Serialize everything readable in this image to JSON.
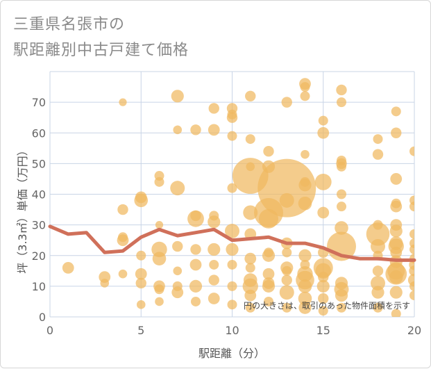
{
  "chart_data": {
    "type": "scatter",
    "title_line1": "三重県名張市の",
    "title_line2": "駅距離別中古戸建て価格",
    "xlabel": "駅距離（分）",
    "ylabel": "坪（3.3㎡）単価（万円）",
    "note": "円の大きさは、取引のあった物件面積を示す",
    "xlim": [
      0,
      20
    ],
    "ylim": [
      0,
      80
    ],
    "xticks": [
      0,
      5,
      10,
      15,
      20
    ],
    "yticks": [
      0,
      10,
      20,
      30,
      40,
      50,
      60,
      70
    ],
    "grid": true,
    "colors": {
      "bubble": "#f0b860",
      "line": "#d0705a",
      "grid": "#c8d4e6",
      "plot_bg": "#ffffff"
    },
    "trend_line": {
      "x": [
        0,
        1,
        2,
        3,
        4,
        5,
        6,
        7,
        8,
        9,
        10,
        11,
        12,
        13,
        14,
        15,
        16,
        17,
        18,
        19,
        20
      ],
      "y": [
        29.5,
        27,
        27.5,
        21,
        21.5,
        26,
        28.5,
        26.5,
        27.5,
        28.5,
        25,
        25.5,
        26,
        24,
        24,
        22.5,
        20,
        19,
        19,
        18.5,
        18.5
      ]
    },
    "points": [
      {
        "x": 1,
        "y": 16,
        "s": 1.2
      },
      {
        "x": 3,
        "y": 11,
        "s": 0.9
      },
      {
        "x": 3,
        "y": 13,
        "s": 1.2
      },
      {
        "x": 4,
        "y": 70,
        "s": 0.8
      },
      {
        "x": 4,
        "y": 35,
        "s": 1.1
      },
      {
        "x": 4,
        "y": 26,
        "s": 1.0
      },
      {
        "x": 4,
        "y": 25,
        "s": 1.2
      },
      {
        "x": 4,
        "y": 14,
        "s": 0.9
      },
      {
        "x": 5,
        "y": 39,
        "s": 1.2
      },
      {
        "x": 5,
        "y": 38,
        "s": 1.4
      },
      {
        "x": 5,
        "y": 20,
        "s": 1.0
      },
      {
        "x": 5,
        "y": 14,
        "s": 1.2
      },
      {
        "x": 5,
        "y": 11,
        "s": 1.1
      },
      {
        "x": 5,
        "y": 4,
        "s": 0.9
      },
      {
        "x": 6,
        "y": 46,
        "s": 1.0
      },
      {
        "x": 6,
        "y": 44,
        "s": 1.0
      },
      {
        "x": 6,
        "y": 30,
        "s": 0.8
      },
      {
        "x": 6,
        "y": 22,
        "s": 1.6
      },
      {
        "x": 6,
        "y": 19,
        "s": 1.4
      },
      {
        "x": 6,
        "y": 10,
        "s": 1.2
      },
      {
        "x": 6,
        "y": 9,
        "s": 1.0
      },
      {
        "x": 6,
        "y": 5,
        "s": 0.9
      },
      {
        "x": 7,
        "y": 72,
        "s": 1.3
      },
      {
        "x": 7,
        "y": 61,
        "s": 0.9
      },
      {
        "x": 7,
        "y": 42,
        "s": 1.5
      },
      {
        "x": 7,
        "y": 23,
        "s": 1.1
      },
      {
        "x": 7,
        "y": 15,
        "s": 0.9
      },
      {
        "x": 7,
        "y": 10,
        "s": 1.0
      },
      {
        "x": 7,
        "y": 8,
        "s": 1.2
      },
      {
        "x": 8,
        "y": 61,
        "s": 1.1
      },
      {
        "x": 8,
        "y": 33,
        "s": 1.1
      },
      {
        "x": 8,
        "y": 32,
        "s": 1.7
      },
      {
        "x": 8,
        "y": 22,
        "s": 1.1
      },
      {
        "x": 8,
        "y": 17,
        "s": 1.2
      },
      {
        "x": 8,
        "y": 10,
        "s": 1.3
      },
      {
        "x": 8,
        "y": 5,
        "s": 1.0
      },
      {
        "x": 9,
        "y": 68,
        "s": 1.1
      },
      {
        "x": 9,
        "y": 61,
        "s": 1.2
      },
      {
        "x": 9,
        "y": 33,
        "s": 1.0
      },
      {
        "x": 9,
        "y": 31,
        "s": 1.3
      },
      {
        "x": 9,
        "y": 22,
        "s": 1.3
      },
      {
        "x": 9,
        "y": 17,
        "s": 1.0
      },
      {
        "x": 9,
        "y": 12,
        "s": 1.1
      },
      {
        "x": 9,
        "y": 6,
        "s": 1.2
      },
      {
        "x": 10,
        "y": 68,
        "s": 1.1
      },
      {
        "x": 10,
        "y": 66,
        "s": 1.0
      },
      {
        "x": 10,
        "y": 65,
        "s": 1.1
      },
      {
        "x": 10,
        "y": 59,
        "s": 1.0
      },
      {
        "x": 10,
        "y": 42,
        "s": 1.0
      },
      {
        "x": 10,
        "y": 28,
        "s": 1.5
      },
      {
        "x": 10,
        "y": 22,
        "s": 1.3
      },
      {
        "x": 10,
        "y": 17,
        "s": 1.0
      },
      {
        "x": 10,
        "y": 10,
        "s": 1.0
      },
      {
        "x": 10,
        "y": 4,
        "s": 1.0
      },
      {
        "x": 11,
        "y": 72,
        "s": 1.1
      },
      {
        "x": 11,
        "y": 58,
        "s": 1.0
      },
      {
        "x": 11,
        "y": 49,
        "s": 0.9
      },
      {
        "x": 11,
        "y": 46,
        "s": 3.7
      },
      {
        "x": 11,
        "y": 34,
        "s": 1.5
      },
      {
        "x": 11,
        "y": 27,
        "s": 1.2
      },
      {
        "x": 11,
        "y": 19,
        "s": 1.2
      },
      {
        "x": 11,
        "y": 16,
        "s": 1.0
      },
      {
        "x": 11,
        "y": 12,
        "s": 1.4
      },
      {
        "x": 11,
        "y": 10,
        "s": 1.6
      },
      {
        "x": 11,
        "y": 7,
        "s": 1.2
      },
      {
        "x": 11,
        "y": 3,
        "s": 1.0
      },
      {
        "x": 12,
        "y": 54,
        "s": 1.1
      },
      {
        "x": 12,
        "y": 49,
        "s": 1.3
      },
      {
        "x": 12,
        "y": 34,
        "s": 3.0
      },
      {
        "x": 12,
        "y": 32,
        "s": 2.0
      },
      {
        "x": 12,
        "y": 21,
        "s": 1.0
      },
      {
        "x": 12,
        "y": 20,
        "s": 1.3
      },
      {
        "x": 12,
        "y": 14,
        "s": 1.2
      },
      {
        "x": 12,
        "y": 11,
        "s": 1.2
      },
      {
        "x": 12,
        "y": 10,
        "s": 1.3
      },
      {
        "x": 12,
        "y": 5,
        "s": 1.0
      },
      {
        "x": 13,
        "y": 70,
        "s": 1.1
      },
      {
        "x": 13,
        "y": 42,
        "s": 6.0
      },
      {
        "x": 13,
        "y": 38,
        "s": 1.5
      },
      {
        "x": 13,
        "y": 24,
        "s": 1.2
      },
      {
        "x": 13,
        "y": 21,
        "s": 1.0
      },
      {
        "x": 13,
        "y": 16,
        "s": 1.3
      },
      {
        "x": 13,
        "y": 15,
        "s": 1.0
      },
      {
        "x": 13,
        "y": 12,
        "s": 1.1
      },
      {
        "x": 13,
        "y": 8,
        "s": 1.5
      },
      {
        "x": 13,
        "y": 3,
        "s": 1.0
      },
      {
        "x": 14,
        "y": 76,
        "s": 1.2
      },
      {
        "x": 14,
        "y": 75,
        "s": 1.0
      },
      {
        "x": 14,
        "y": 72,
        "s": 1.0
      },
      {
        "x": 14,
        "y": 53,
        "s": 0.9
      },
      {
        "x": 14,
        "y": 44,
        "s": 1.0
      },
      {
        "x": 14,
        "y": 43,
        "s": 1.3
      },
      {
        "x": 14,
        "y": 37,
        "s": 1.4
      },
      {
        "x": 14,
        "y": 20,
        "s": 1.3
      },
      {
        "x": 14,
        "y": 17,
        "s": 1.0
      },
      {
        "x": 14,
        "y": 14,
        "s": 1.6
      },
      {
        "x": 14,
        "y": 12,
        "s": 1.9
      },
      {
        "x": 14,
        "y": 10,
        "s": 1.4
      },
      {
        "x": 14,
        "y": 6,
        "s": 1.4
      },
      {
        "x": 14,
        "y": 3,
        "s": 1.3
      },
      {
        "x": 15,
        "y": 64,
        "s": 1.0
      },
      {
        "x": 15,
        "y": 60,
        "s": 1.2
      },
      {
        "x": 15,
        "y": 44,
        "s": 1.7
      },
      {
        "x": 15,
        "y": 34,
        "s": 1.2
      },
      {
        "x": 15,
        "y": 21,
        "s": 1.1
      },
      {
        "x": 15,
        "y": 16,
        "s": 2.0
      },
      {
        "x": 15,
        "y": 15,
        "s": 1.6
      },
      {
        "x": 15,
        "y": 13,
        "s": 1.1
      },
      {
        "x": 15,
        "y": 10,
        "s": 1.3
      },
      {
        "x": 15,
        "y": 6,
        "s": 1.1
      },
      {
        "x": 15,
        "y": 2,
        "s": 1.0
      },
      {
        "x": 16,
        "y": 74,
        "s": 1.1
      },
      {
        "x": 16,
        "y": 70,
        "s": 1.0
      },
      {
        "x": 16,
        "y": 51,
        "s": 1.0
      },
      {
        "x": 16,
        "y": 50,
        "s": 1.1
      },
      {
        "x": 16,
        "y": 49,
        "s": 1.0
      },
      {
        "x": 16,
        "y": 40,
        "s": 1.0
      },
      {
        "x": 16,
        "y": 36,
        "s": 1.0
      },
      {
        "x": 16,
        "y": 29,
        "s": 1.4
      },
      {
        "x": 16,
        "y": 23,
        "s": 3.0
      },
      {
        "x": 16,
        "y": 11,
        "s": 1.3
      },
      {
        "x": 16,
        "y": 9,
        "s": 1.5
      },
      {
        "x": 16,
        "y": 7,
        "s": 1.3
      },
      {
        "x": 16,
        "y": 3,
        "s": 1.0
      },
      {
        "x": 18,
        "y": 58,
        "s": 1.0
      },
      {
        "x": 18,
        "y": 53,
        "s": 1.1
      },
      {
        "x": 18,
        "y": 30,
        "s": 1.0
      },
      {
        "x": 18,
        "y": 27,
        "s": 2.4
      },
      {
        "x": 18,
        "y": 23,
        "s": 1.5
      },
      {
        "x": 18,
        "y": 20,
        "s": 1.0
      },
      {
        "x": 18,
        "y": 15,
        "s": 1.1
      },
      {
        "x": 18,
        "y": 11,
        "s": 1.5
      },
      {
        "x": 18,
        "y": 8,
        "s": 1.3
      },
      {
        "x": 18,
        "y": 3,
        "s": 1.0
      },
      {
        "x": 19,
        "y": 67,
        "s": 1.0
      },
      {
        "x": 19,
        "y": 60,
        "s": 1.1
      },
      {
        "x": 19,
        "y": 45,
        "s": 1.2
      },
      {
        "x": 19,
        "y": 37,
        "s": 1.0
      },
      {
        "x": 19,
        "y": 36,
        "s": 1.2
      },
      {
        "x": 19,
        "y": 30,
        "s": 1.2
      },
      {
        "x": 19,
        "y": 28,
        "s": 1.3
      },
      {
        "x": 19,
        "y": 24,
        "s": 1.4
      },
      {
        "x": 19,
        "y": 23,
        "s": 1.6
      },
      {
        "x": 19,
        "y": 21,
        "s": 1.2
      },
      {
        "x": 19,
        "y": 18,
        "s": 1.3
      },
      {
        "x": 19,
        "y": 15,
        "s": 1.8
      },
      {
        "x": 19,
        "y": 14,
        "s": 2.2
      },
      {
        "x": 19,
        "y": 13,
        "s": 1.4
      },
      {
        "x": 19,
        "y": 8,
        "s": 1.3
      },
      {
        "x": 19,
        "y": 1,
        "s": 1.0
      },
      {
        "x": 20,
        "y": 54,
        "s": 1.0
      },
      {
        "x": 20,
        "y": 38,
        "s": 1.0
      },
      {
        "x": 20,
        "y": 36,
        "s": 1.0
      },
      {
        "x": 20,
        "y": 27,
        "s": 1.0
      },
      {
        "x": 20,
        "y": 24,
        "s": 1.0
      },
      {
        "x": 20,
        "y": 22,
        "s": 1.0
      },
      {
        "x": 20,
        "y": 19,
        "s": 1.0
      },
      {
        "x": 20,
        "y": 17,
        "s": 1.1
      },
      {
        "x": 20,
        "y": 15,
        "s": 1.1
      },
      {
        "x": 20,
        "y": 12,
        "s": 1.3
      },
      {
        "x": 20,
        "y": 10,
        "s": 1.0
      },
      {
        "x": 20,
        "y": 7,
        "s": 1.0
      }
    ]
  }
}
